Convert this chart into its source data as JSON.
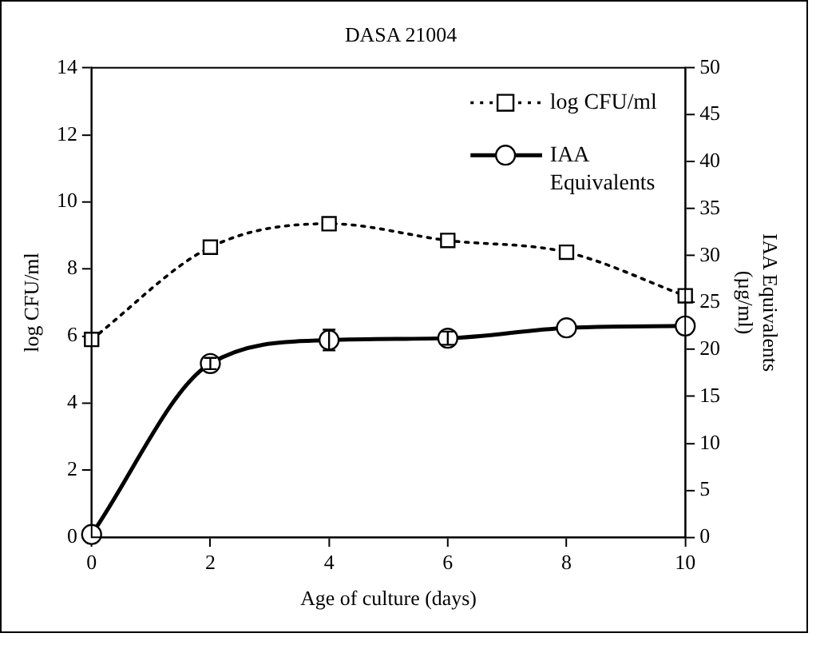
{
  "chart_data": {
    "type": "line",
    "title": "DASA 21004",
    "xlabel": "Age of culture (days)",
    "ylabel": "log CFU/ml",
    "y2label": "IAA Equivalents (µg/ml)",
    "x": [
      0,
      2,
      4,
      6,
      8,
      10
    ],
    "series": [
      {
        "name": "log CFU/ml",
        "color": "#000000",
        "values": [
          5.9,
          8.65,
          9.35,
          8.85,
          8.5,
          7.2
        ],
        "marker": "square",
        "line_style": "dotted"
      },
      {
        "name": "IAA Equivalents",
        "color": "#000000",
        "values": [
          0.3,
          18.5,
          21,
          21.2,
          22.3,
          22.5
        ],
        "errors": [
          null,
          0.6,
          1.1,
          0.7,
          null,
          null
        ],
        "marker": "circle",
        "line_style": "solid",
        "axis": "y2"
      }
    ],
    "xlim": [
      0,
      10
    ],
    "xticks": [
      0,
      2,
      4,
      6,
      8,
      10
    ],
    "ylim": [
      0,
      14
    ],
    "yticks": [
      0,
      2,
      4,
      6,
      8,
      10,
      12,
      14
    ],
    "y2lim": [
      0,
      50
    ],
    "y2ticks": [
      0,
      5,
      10,
      15,
      20,
      25,
      30,
      35,
      40,
      45,
      50
    ],
    "grid": false,
    "legend": "top right"
  }
}
